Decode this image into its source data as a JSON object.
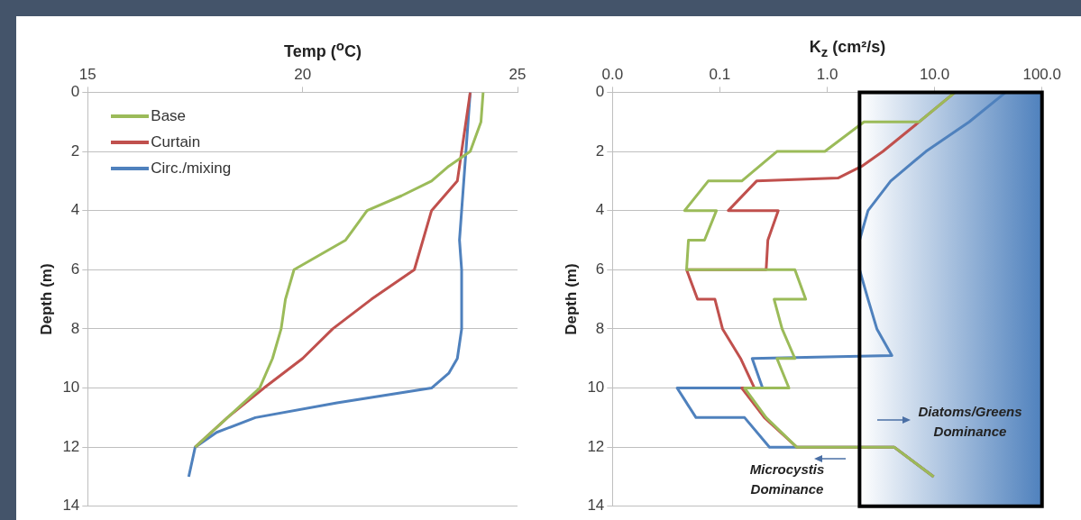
{
  "chart_data": [
    {
      "type": "line",
      "xlabel": "Temp ($^{o}$C)",
      "ylabel": "Depth (m)",
      "xlim": [
        15,
        25
      ],
      "xticks": [
        15,
        20,
        25
      ],
      "ylim": [
        14,
        0
      ],
      "yticks": [
        0,
        2,
        4,
        6,
        8,
        10,
        12,
        14
      ],
      "grid": "y",
      "legend": "top left",
      "series": [
        {
          "name": "Base",
          "color": "#9bbb59",
          "x": [
            24.2,
            24.15,
            23.9,
            23.4,
            23.0,
            22.3,
            21.5,
            21.0,
            19.8,
            19.6,
            19.5,
            19.3,
            19.0,
            18.25,
            17.5
          ],
          "values": [
            0,
            1,
            2,
            2.5,
            3,
            3.5,
            4,
            5,
            6,
            7,
            8,
            9,
            10,
            11,
            12
          ]
        },
        {
          "name": "Curtain",
          "color": "#c0504d",
          "x": [
            23.9,
            23.8,
            23.7,
            23.6,
            23.0,
            22.8,
            22.6,
            21.6,
            20.7,
            20.0,
            19.1,
            18.25,
            17.5
          ],
          "values": [
            0,
            1,
            2,
            3,
            4,
            5,
            6,
            7,
            8,
            9,
            10,
            11,
            12
          ]
        },
        {
          "name": "Circ./mixing",
          "color": "#4f81bd",
          "x": [
            23.9,
            23.85,
            23.8,
            23.75,
            23.7,
            23.65,
            23.7,
            23.7,
            23.6,
            23.4,
            23.0,
            20.8,
            18.9,
            18.0,
            17.5,
            17.35
          ],
          "values": [
            0,
            1,
            2,
            3,
            4,
            5,
            6,
            8,
            9,
            9.5,
            10,
            10.5,
            11,
            11.5,
            12,
            13
          ]
        }
      ]
    },
    {
      "type": "line",
      "xlabel": "K$_{z}$ (cm²/s)",
      "ylabel": "Depth (m)",
      "log": "x",
      "xlim": [
        0.01,
        100
      ],
      "xticks": [
        {
          "value": 0.01,
          "label": "0.0"
        },
        {
          "value": 0.1,
          "label": "0.1"
        },
        {
          "value": 1,
          "label": "1.0"
        },
        {
          "value": 10,
          "label": "10.0"
        },
        {
          "value": 100,
          "label": "100.0"
        }
      ],
      "ylim": [
        14,
        0
      ],
      "yticks": [
        0,
        2,
        4,
        6,
        8,
        10,
        12,
        14
      ],
      "grid": "y",
      "bands": [
        {
          "axis": "x",
          "from": 2,
          "to": 100,
          "color": "#4f81bd"
        }
      ],
      "annotations": [
        "Diatoms/Greens Dominance",
        "Microcystis Dominance"
      ],
      "series": [
        {
          "color": "#9bbb59",
          "x": [
            15.5,
            7.2,
            2.2,
            0.95,
            0.34,
            0.16,
            0.078,
            0.047,
            0.093,
            0.072,
            0.051,
            0.049,
            0.5,
            0.63,
            0.32,
            0.38,
            0.5,
            0.34,
            0.44,
            0.17,
            0.27,
            0.52,
            4.2,
            9.8
          ],
          "values": [
            0,
            1,
            1,
            2,
            2,
            3,
            3,
            4,
            4,
            5,
            5,
            6,
            6,
            7,
            7,
            8,
            9,
            9,
            10,
            10,
            11,
            12,
            12,
            13
          ]
        },
        {
          "color": "#c0504d",
          "x": [
            15.5,
            7.2,
            3.3,
            2.1,
            1.26,
            0.22,
            0.12,
            0.35,
            0.28,
            0.27,
            0.049,
            0.062,
            0.09,
            0.106,
            0.156,
            0.21,
            0.16,
            0.26,
            0.52,
            4.2,
            9.8
          ],
          "values": [
            0,
            1,
            2,
            2.5,
            2.9,
            3,
            4,
            4,
            5,
            6,
            6,
            7,
            7,
            8,
            9,
            10,
            10,
            11,
            12,
            12,
            13
          ]
        },
        {
          "color": "#4f81bd",
          "x": [
            46,
            21,
            8.3,
            3.9,
            2.4,
            2.0,
            2.0,
            2.4,
            2.9,
            4.0,
            0.2,
            0.25,
            0.04,
            0.06,
            0.17,
            0.29,
            4.2,
            9.8
          ],
          "values": [
            0,
            1,
            2,
            3,
            4,
            5,
            6,
            7,
            8,
            8.9,
            9,
            10,
            10,
            11,
            11,
            12,
            12,
            13
          ]
        }
      ]
    }
  ]
}
